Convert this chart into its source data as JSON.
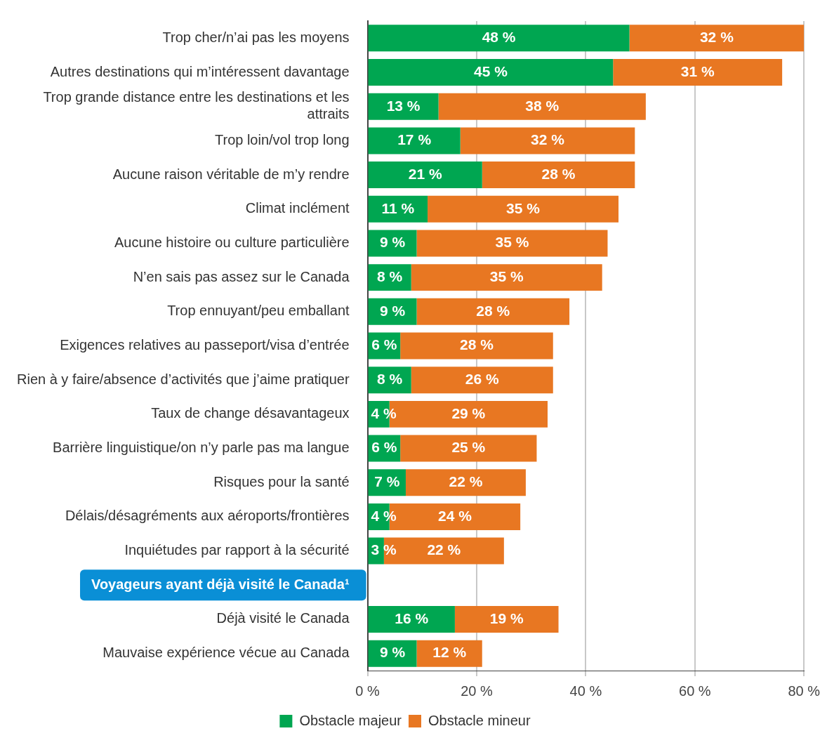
{
  "chart_data": {
    "type": "bar",
    "orientation": "horizontal",
    "stacked": true,
    "grid": "x",
    "legend": "bottom",
    "categories": [
      "Trop cher/n’ai pas les moyens",
      "Autres destinations qui m’intéressent davantage",
      "Trop grande distance entre les destinations et les attraits",
      "Trop loin/vol trop long",
      "Aucune raison véritable de m’y rendre",
      "Climat inclément",
      "Aucune histoire ou culture particulière",
      "N’en sais pas assez sur le Canada",
      "Trop ennuyant/peu emballant",
      "Exigences relatives au passeport/visa d’entrée",
      "Rien à y faire/absence d’activités que j’aime pratiquer",
      "Taux de change désavantageux",
      "Barrière linguistique/on n’y parle pas ma langue",
      "Risques pour la santé",
      "Délais/désagréments aux aéroports/frontières",
      "Inquiétudes par rapport à la sécurité",
      "Voyageurs ayant déjà visité le Canada¹",
      "Déjà visité le Canada",
      "Mauvaise expérience vécue au Canada"
    ],
    "series": [
      {
        "name": "Obstacle majeur",
        "color": "#00a651",
        "values": [
          48,
          45,
          13,
          17,
          21,
          11,
          9,
          8,
          9,
          6,
          8,
          4,
          6,
          7,
          4,
          3,
          null,
          16,
          9
        ],
        "value_labels": [
          "48 %",
          "45 %",
          "13 %",
          "17 %",
          "21 %",
          "11 %",
          "9 %",
          "8 %",
          "9 %",
          "6 %",
          "8 %",
          "4 %",
          "6 %",
          "7 %",
          "4 %",
          "3 %",
          null,
          "16 %",
          "9 %"
        ]
      },
      {
        "name": "Obstacle mineur",
        "color": "#e87722",
        "values": [
          32,
          31,
          38,
          32,
          28,
          35,
          35,
          35,
          28,
          28,
          26,
          29,
          25,
          22,
          24,
          22,
          null,
          19,
          12
        ],
        "value_labels": [
          "32 %",
          "31 %",
          "38 %",
          "32 %",
          "28 %",
          "35 %",
          "35 %",
          "35 %",
          "28 %",
          "28 %",
          "26 %",
          "29 %",
          "25 %",
          "22 %",
          "24 %",
          "22 %",
          null,
          "19 %",
          "12 %"
        ]
      }
    ],
    "xlim": [
      0,
      80
    ],
    "xticks": [
      {
        "value": 0,
        "label": "0 %"
      },
      {
        "value": 20,
        "label": "20 %"
      },
      {
        "value": 40,
        "label": "40 %"
      },
      {
        "value": 60,
        "label": "60 %"
      },
      {
        "value": 80,
        "label": "80 %"
      }
    ]
  }
}
